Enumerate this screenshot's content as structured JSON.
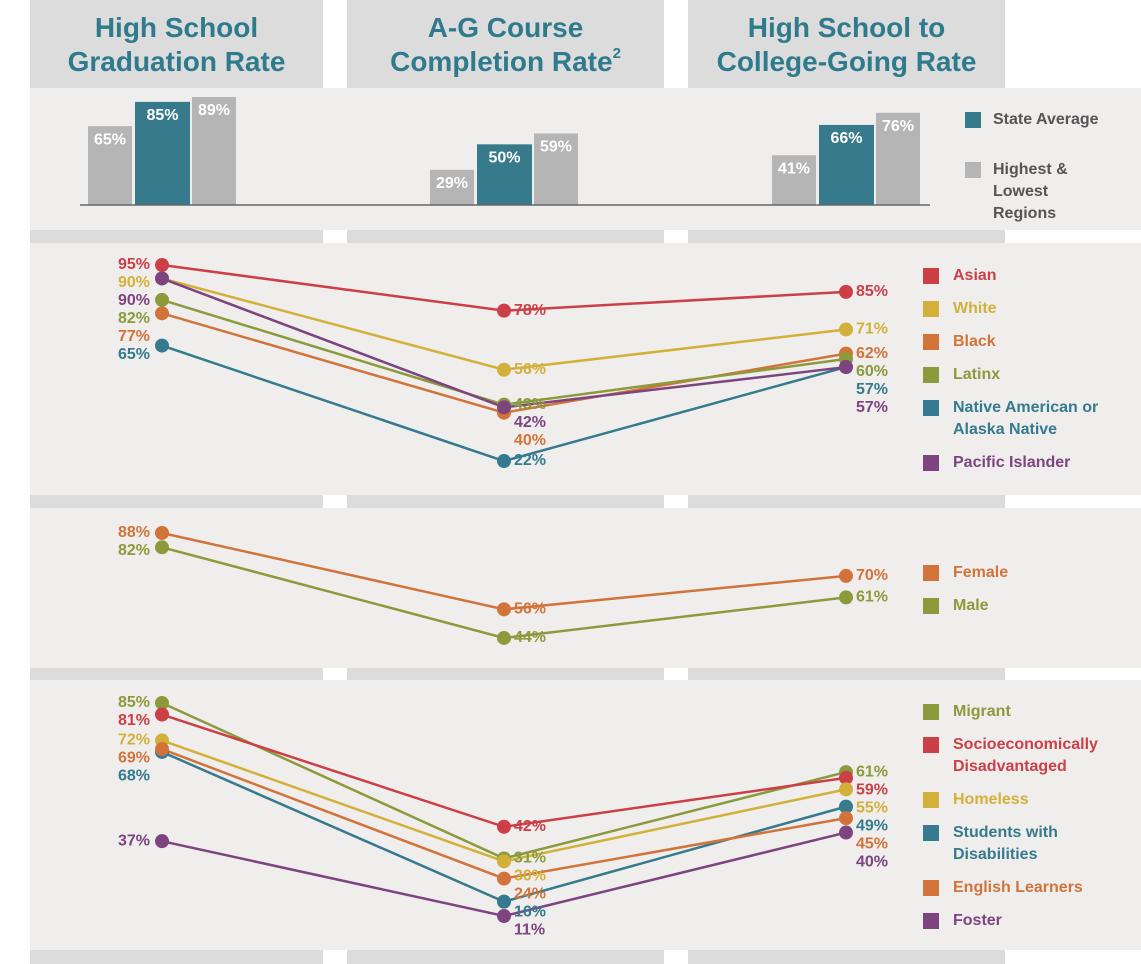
{
  "columns": [
    {
      "title": [
        "High School",
        "Graduation Rate"
      ]
    },
    {
      "title": [
        "A-G Course",
        "Completion Rate"
      ],
      "note": "2"
    },
    {
      "title": [
        "High School to",
        "College-Going Rate"
      ]
    }
  ],
  "chart_data": [
    {
      "type": "bar",
      "ylim": [
        0,
        90
      ],
      "series": [
        {
          "name": "State Average",
          "color": "#367a8c",
          "values": [
            85,
            50,
            66
          ],
          "value_labels": [
            "85%",
            "50%",
            "66%"
          ]
        },
        {
          "name": "Highest & Lowest Regions",
          "color": "#b5b5b5",
          "values": [
            [
              65,
              89
            ],
            [
              29,
              59
            ],
            [
              41,
              76
            ]
          ],
          "value_labels": [
            [
              "65%",
              "89%"
            ],
            [
              "29%",
              "59%"
            ],
            [
              "41%",
              "76%"
            ]
          ]
        }
      ]
    },
    {
      "type": "line",
      "ylim": [
        20,
        100
      ],
      "series": [
        {
          "name": "Asian",
          "color": "#cc3f46",
          "values": [
            95,
            78,
            85
          ],
          "value_labels": [
            "95%",
            "78%",
            "85%"
          ]
        },
        {
          "name": "White",
          "color": "#d3b03a",
          "values": [
            90,
            56,
            71
          ],
          "value_labels": [
            "90%",
            "56%",
            "71%"
          ]
        },
        {
          "name": "Black",
          "color": "#d2733a",
          "values": [
            77,
            40,
            62
          ],
          "value_labels": [
            "77%",
            "40%",
            "62%"
          ]
        },
        {
          "name": "Latinx",
          "color": "#8b9a3b",
          "values": [
            82,
            43,
            60
          ],
          "value_labels": [
            "82%",
            "43%",
            "60%"
          ]
        },
        {
          "name": "Native American or Alaska Native",
          "color": "#357a8e",
          "values": [
            65,
            22,
            57
          ],
          "value_labels": [
            "65%",
            "22%",
            "57%"
          ]
        },
        {
          "name": "Pacific Islander",
          "color": "#7d4480",
          "values": [
            90,
            42,
            57
          ],
          "value_labels": [
            "90%",
            "42%",
            "57%"
          ]
        }
      ]
    },
    {
      "type": "line",
      "ylim": [
        40,
        90
      ],
      "series": [
        {
          "name": "Female",
          "color": "#d2733a",
          "values": [
            88,
            56,
            70
          ],
          "value_labels": [
            "88%",
            "56%",
            "70%"
          ]
        },
        {
          "name": "Male",
          "color": "#8b9a3b",
          "values": [
            82,
            44,
            61
          ],
          "value_labels": [
            "82%",
            "44%",
            "61%"
          ]
        }
      ]
    },
    {
      "type": "line",
      "ylim": [
        10,
        90
      ],
      "series": [
        {
          "name": "Migrant",
          "color": "#8b9a3b",
          "values": [
            85,
            31,
            61
          ],
          "value_labels": [
            "85%",
            "31%",
            "61%"
          ]
        },
        {
          "name": "Socioeconomically Disadvantaged",
          "color": "#cc3f46",
          "values": [
            81,
            42,
            59
          ],
          "value_labels": [
            "81%",
            "42%",
            "59%"
          ]
        },
        {
          "name": "Homeless",
          "color": "#d3b03a",
          "values": [
            72,
            30,
            55
          ],
          "value_labels": [
            "72%",
            "30%",
            "55%"
          ]
        },
        {
          "name": "Students with Disabilities",
          "color": "#357a8e",
          "values": [
            68,
            16,
            49
          ],
          "value_labels": [
            "68%",
            "16%",
            "49%"
          ]
        },
        {
          "name": "English Learners",
          "color": "#d2733a",
          "values": [
            69,
            24,
            45
          ],
          "value_labels": [
            "69%",
            "24%",
            "45%"
          ]
        },
        {
          "name": "Foster",
          "color": "#7d4480",
          "values": [
            37,
            11,
            40
          ],
          "value_labels": [
            "37%",
            "11%",
            "40%"
          ]
        }
      ]
    }
  ]
}
